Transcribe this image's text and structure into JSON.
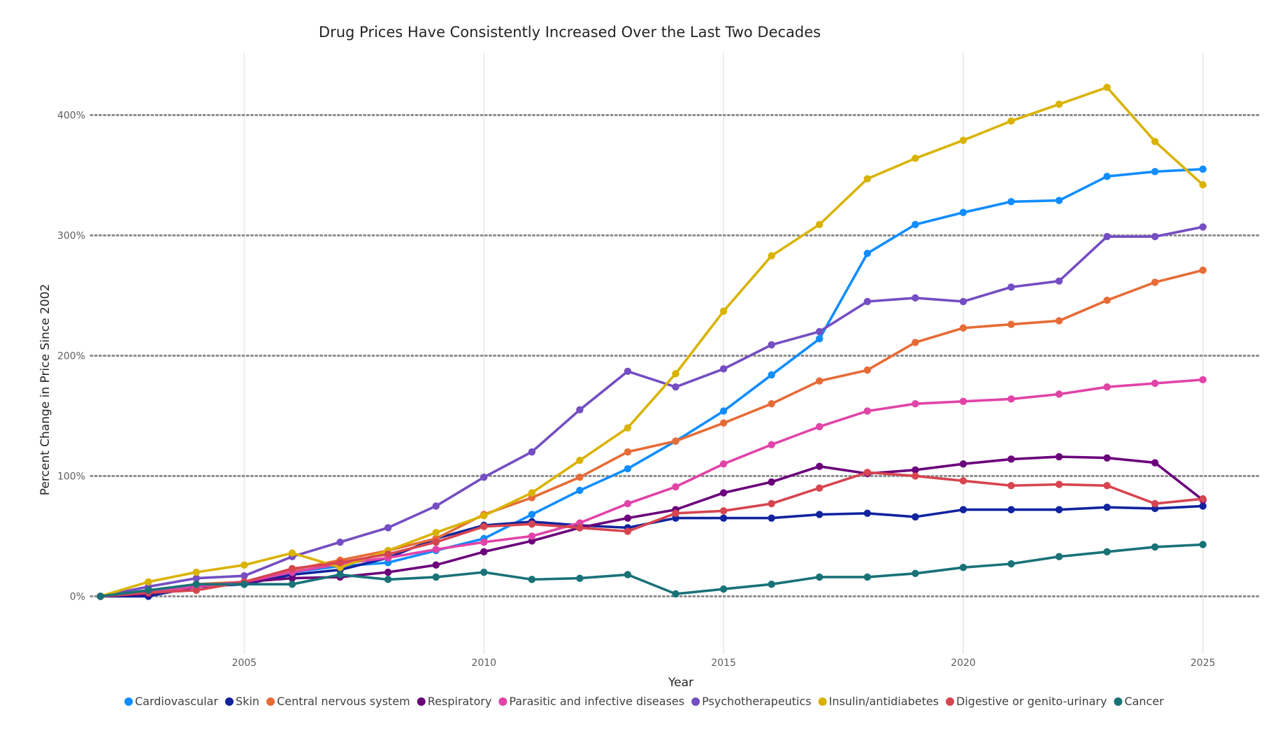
{
  "chart_data": {
    "type": "line",
    "title": "Drug Prices Have Consistently Increased Over the Last Two Decades",
    "xlabel": "Year",
    "ylabel": "Percent Change in Price Since 2002",
    "x": [
      2002,
      2003,
      2004,
      2005,
      2006,
      2007,
      2008,
      2009,
      2010,
      2011,
      2012,
      2013,
      2014,
      2015,
      2016,
      2017,
      2018,
      2019,
      2020,
      2021,
      2022,
      2023,
      2024,
      2025
    ],
    "xlim": [
      2001.8,
      2026.2
    ],
    "ylim": [
      -48,
      452
    ],
    "x_ticks": [
      2005,
      2010,
      2015,
      2020,
      2025
    ],
    "x_tick_labels": [
      "2005",
      "2010",
      "2015",
      "2020",
      "2025"
    ],
    "y_ticks": [
      0,
      100,
      200,
      300,
      400
    ],
    "y_tick_labels": [
      "0%",
      "100%",
      "200%",
      "300%",
      "400%"
    ],
    "grid": "horizontal dotted and vertical solid",
    "legend_position": "bottom",
    "series": [
      {
        "name": "Cardiovascular",
        "color": "#118DFF",
        "values": [
          0,
          5,
          8,
          10,
          20,
          25,
          28,
          38,
          48,
          68,
          88,
          106,
          129,
          154,
          184,
          214,
          285,
          309,
          319,
          328,
          329,
          349,
          353,
          355
        ]
      },
      {
        "name": "Skin",
        "color": "#12239E",
        "values": [
          0,
          0,
          8,
          10,
          18,
          22,
          32,
          48,
          59,
          62,
          59,
          57,
          65,
          65,
          65,
          68,
          69,
          66,
          72,
          72,
          72,
          74,
          73,
          75
        ]
      },
      {
        "name": "Central nervous system",
        "color": "#E66C37",
        "values": [
          0,
          3,
          10,
          12,
          22,
          30,
          38,
          48,
          68,
          82,
          99,
          120,
          129,
          144,
          160,
          179,
          188,
          211,
          223,
          226,
          229,
          246,
          261,
          271
        ]
      },
      {
        "name": "Respiratory",
        "color": "#6B007B",
        "values": [
          0,
          2,
          8,
          12,
          15,
          16,
          20,
          26,
          37,
          46,
          57,
          65,
          72,
          86,
          95,
          108,
          102,
          105,
          110,
          114,
          116,
          115,
          111,
          80
        ]
      },
      {
        "name": "Parasitic and infective diseases",
        "color": "#E044A7",
        "values": [
          0,
          3,
          8,
          12,
          20,
          27,
          32,
          39,
          45,
          50,
          61,
          77,
          91,
          110,
          126,
          141,
          154,
          160,
          162,
          164,
          168,
          174,
          177,
          180
        ]
      },
      {
        "name": "Psychotherapeutics",
        "color": "#744EC2",
        "values": [
          0,
          8,
          15,
          17,
          33,
          45,
          57,
          75,
          99,
          120,
          155,
          187,
          174,
          189,
          209,
          220,
          245,
          248,
          245,
          257,
          262,
          299,
          299,
          307
        ]
      },
      {
        "name": "Insulin/antidiabetes",
        "color": "#D9B300",
        "values": [
          0,
          12,
          20,
          26,
          36,
          24,
          38,
          53,
          67,
          86,
          113,
          140,
          185,
          237,
          283,
          309,
          347,
          364,
          379,
          395,
          409,
          423,
          378,
          342
        ]
      },
      {
        "name": "Digestive or genito-urinary",
        "color": "#D64550",
        "values": [
          0,
          3,
          5,
          12,
          23,
          28,
          35,
          45,
          58,
          60,
          57,
          54,
          69,
          71,
          77,
          90,
          103,
          100,
          96,
          92,
          93,
          92,
          77,
          81
        ]
      },
      {
        "name": "Cancer",
        "color": "#197278",
        "values": [
          0,
          5,
          10,
          10,
          10,
          18,
          14,
          16,
          20,
          14,
          15,
          18,
          2,
          6,
          10,
          16,
          16,
          19,
          24,
          27,
          33,
          37,
          41,
          43
        ]
      }
    ]
  }
}
